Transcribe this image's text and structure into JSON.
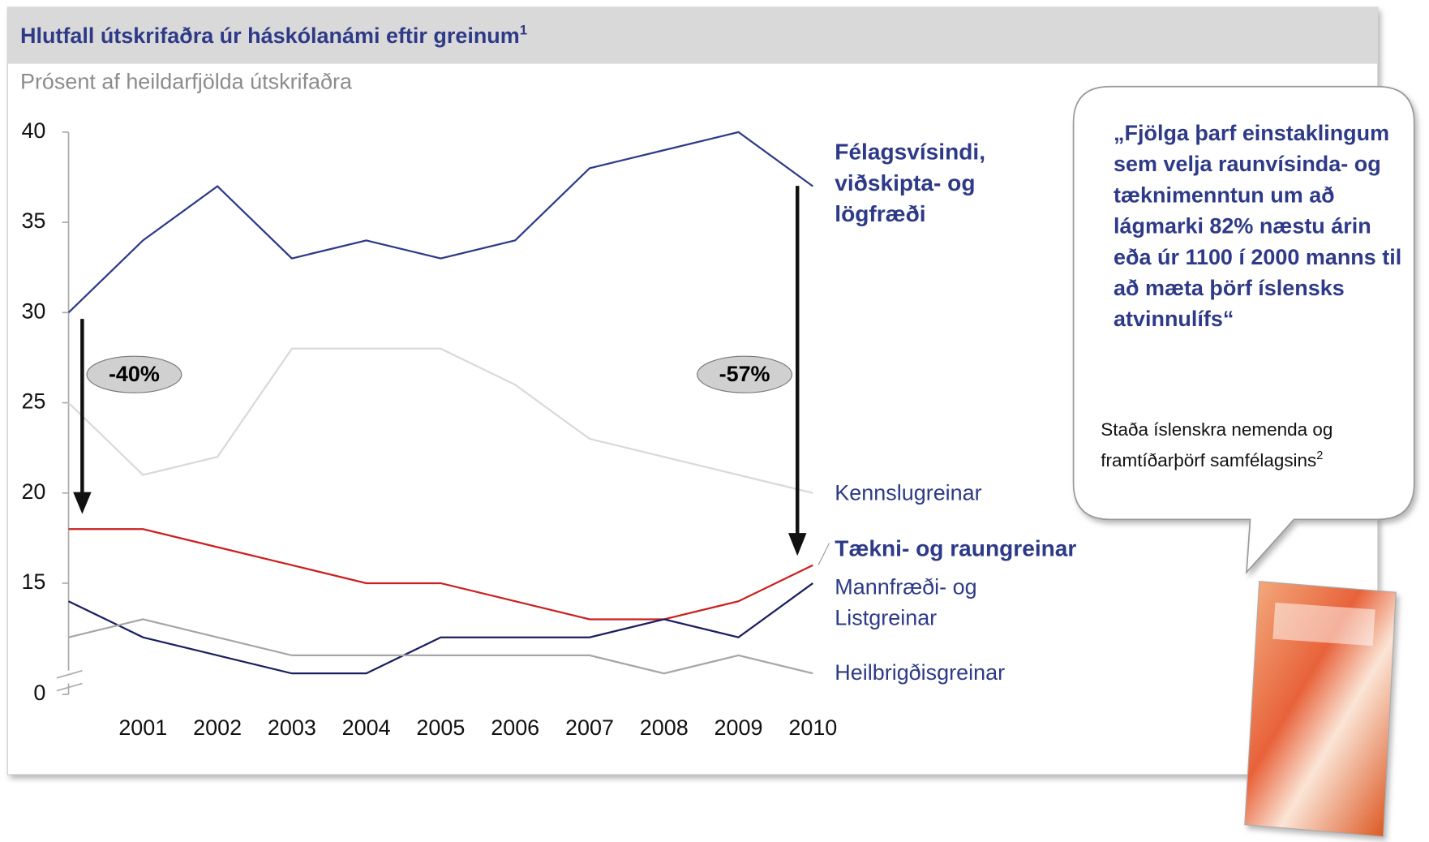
{
  "chart_data": {
    "type": "line",
    "title": "Hlutfall útskrifaðra úr háskólanámi eftir greinum",
    "title_note": "1",
    "subtitle": "Prósent af heildarfjölda útskrifaðra",
    "categories": [
      null,
      "2001",
      "2002",
      "2003",
      "2004",
      "2005",
      "2006",
      "2007",
      "2008",
      "2009",
      "2010"
    ],
    "ylim": [
      0,
      40
    ],
    "yticks": [
      0,
      15,
      20,
      25,
      30,
      35,
      40
    ],
    "ybreak": [
      0,
      10
    ],
    "grid": false,
    "series": [
      {
        "name": "Félagsvísindi, viðskipta- og lögfræði",
        "color": "#2e3a87",
        "emphasis": true,
        "values": [
          30,
          34,
          37,
          33,
          34,
          33,
          34,
          38,
          39,
          40,
          37
        ]
      },
      {
        "name": "Kennslugreinar",
        "color": "#d9d9d9",
        "emphasis": false,
        "values": [
          25,
          21,
          22,
          28,
          28,
          28,
          26,
          23,
          22,
          21,
          20
        ]
      },
      {
        "name": "Tækni- og raungreinar",
        "color": "#cc1f1f",
        "emphasis": true,
        "values": [
          18,
          18,
          17,
          16,
          15,
          15,
          14,
          13,
          13,
          14,
          16
        ]
      },
      {
        "name": "Mannfræði- og Listgreinar",
        "color": "#1a1f5e",
        "emphasis": false,
        "values": [
          14,
          12,
          11,
          10,
          10,
          12,
          12,
          12,
          13,
          12,
          15
        ]
      },
      {
        "name": "Heilbrigðisgreinar",
        "color": "#a6a6a6",
        "emphasis": false,
        "values": [
          12,
          13,
          12,
          11,
          11,
          11,
          11,
          11,
          10,
          11,
          10
        ]
      }
    ],
    "annotations": [
      "-40%",
      "-57%"
    ],
    "callout": {
      "quote": "„Fjölga þarf einstaklingum sem velja raunvísinda- og tæknimenntun um að lágmarki 82% næstu árin eða úr 1100 í 2000 manns til að mæta þörf íslensks atvinnulífs“",
      "source": "Staða íslenskra nemenda og framtíðarþörf samfélagsins",
      "source_note": "2"
    }
  }
}
